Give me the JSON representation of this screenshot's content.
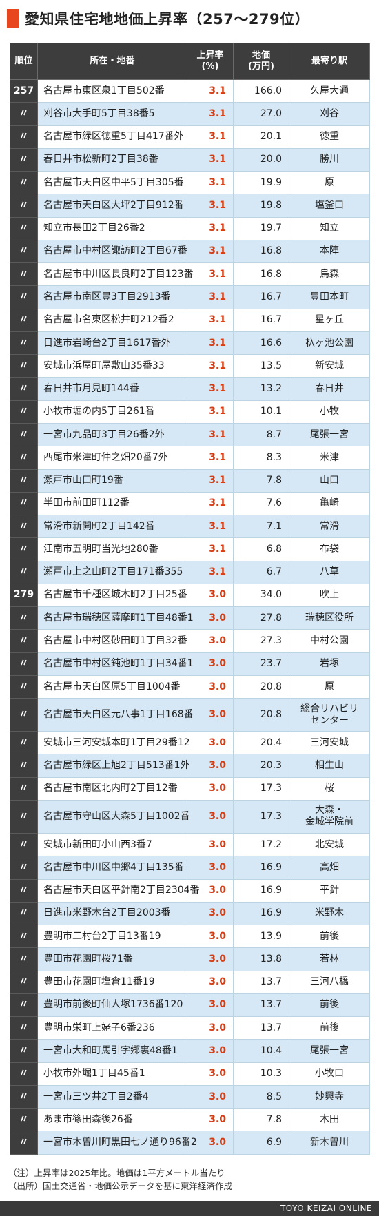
{
  "title": "愛知県住宅地地価上昇率（257〜279位）",
  "headers": {
    "rank": "順位",
    "location": "所在・地番",
    "rate_line1": "上昇率",
    "rate_line2": "(%)",
    "price_line1": "地価",
    "price_line2": "(万円)",
    "station": "最寄り駅"
  },
  "rows": [
    {
      "rank": "257",
      "location": "名古屋市東区泉1丁目502番",
      "rate": "3.1",
      "price": "166.0",
      "station": "久屋大通"
    },
    {
      "rank": "〃",
      "location": "刈谷市大手町5丁目38番5",
      "rate": "3.1",
      "price": "27.0",
      "station": "刈谷"
    },
    {
      "rank": "〃",
      "location": "名古屋市緑区徳重5丁目417番外",
      "rate": "3.1",
      "price": "20.1",
      "station": "徳重"
    },
    {
      "rank": "〃",
      "location": "春日井市松新町2丁目38番",
      "rate": "3.1",
      "price": "20.0",
      "station": "勝川"
    },
    {
      "rank": "〃",
      "location": "名古屋市天白区中平5丁目305番",
      "rate": "3.1",
      "price": "19.9",
      "station": "原"
    },
    {
      "rank": "〃",
      "location": "名古屋市天白区大坪2丁目912番",
      "rate": "3.1",
      "price": "19.8",
      "station": "塩釜口"
    },
    {
      "rank": "〃",
      "location": "知立市長田2丁目26番2",
      "rate": "3.1",
      "price": "19.7",
      "station": "知立"
    },
    {
      "rank": "〃",
      "location": "名古屋市中村区諏訪町2丁目67番",
      "rate": "3.1",
      "price": "16.8",
      "station": "本陣"
    },
    {
      "rank": "〃",
      "location": "名古屋市中川区長良町2丁目123番",
      "rate": "3.1",
      "price": "16.8",
      "station": "烏森"
    },
    {
      "rank": "〃",
      "location": "名古屋市南区豊3丁目2913番",
      "rate": "3.1",
      "price": "16.7",
      "station": "豊田本町"
    },
    {
      "rank": "〃",
      "location": "名古屋市名東区松井町212番2",
      "rate": "3.1",
      "price": "16.7",
      "station": "星ヶ丘"
    },
    {
      "rank": "〃",
      "location": "日進市岩崎台2丁目1617番外",
      "rate": "3.1",
      "price": "16.6",
      "station": "杁ヶ池公園"
    },
    {
      "rank": "〃",
      "location": "安城市浜屋町屋敷山35番33",
      "rate": "3.1",
      "price": "13.5",
      "station": "新安城"
    },
    {
      "rank": "〃",
      "location": "春日井市月見町144番",
      "rate": "3.1",
      "price": "13.2",
      "station": "春日井"
    },
    {
      "rank": "〃",
      "location": "小牧市堀の内5丁目261番",
      "rate": "3.1",
      "price": "10.1",
      "station": "小牧"
    },
    {
      "rank": "〃",
      "location": "一宮市九品町3丁目26番2外",
      "rate": "3.1",
      "price": "8.7",
      "station": "尾張一宮"
    },
    {
      "rank": "〃",
      "location": "西尾市米津町仲之畑20番7外",
      "rate": "3.1",
      "price": "8.3",
      "station": "米津"
    },
    {
      "rank": "〃",
      "location": "瀬戸市山口町19番",
      "rate": "3.1",
      "price": "7.8",
      "station": "山口"
    },
    {
      "rank": "〃",
      "location": "半田市前田町112番",
      "rate": "3.1",
      "price": "7.6",
      "station": "亀崎"
    },
    {
      "rank": "〃",
      "location": "常滑市新開町2丁目142番",
      "rate": "3.1",
      "price": "7.1",
      "station": "常滑"
    },
    {
      "rank": "〃",
      "location": "江南市五明町当光地280番",
      "rate": "3.1",
      "price": "6.8",
      "station": "布袋"
    },
    {
      "rank": "〃",
      "location": "瀬戸市上之山町2丁目171番355",
      "rate": "3.1",
      "price": "6.7",
      "station": "八草"
    },
    {
      "rank": "279",
      "location": "名古屋市千種区城木町2丁目25番",
      "rate": "3.0",
      "price": "34.0",
      "station": "吹上"
    },
    {
      "rank": "〃",
      "location": "名古屋市瑞穂区薩摩町1丁目48番1",
      "rate": "3.0",
      "price": "27.8",
      "station": "瑞穂区役所"
    },
    {
      "rank": "〃",
      "location": "名古屋市中村区砂田町1丁目32番",
      "rate": "3.0",
      "price": "27.3",
      "station": "中村公園"
    },
    {
      "rank": "〃",
      "location": "名古屋市中村区鈍池町1丁目34番1",
      "rate": "3.0",
      "price": "23.7",
      "station": "岩塚"
    },
    {
      "rank": "〃",
      "location": "名古屋市天白区原5丁目1004番",
      "rate": "3.0",
      "price": "20.8",
      "station": "原"
    },
    {
      "rank": "〃",
      "location": "名古屋市天白区元八事1丁目168番",
      "rate": "3.0",
      "price": "20.8",
      "station": "総合リハビリ",
      "station2": "センター",
      "tall": true
    },
    {
      "rank": "〃",
      "location": "安城市三河安城本町1丁目29番12",
      "rate": "3.0",
      "price": "20.4",
      "station": "三河安城"
    },
    {
      "rank": "〃",
      "location": "名古屋市緑区上旭2丁目513番1外",
      "rate": "3.0",
      "price": "20.3",
      "station": "相生山"
    },
    {
      "rank": "〃",
      "location": "名古屋市南区北内町2丁目12番",
      "rate": "3.0",
      "price": "17.3",
      "station": "桜"
    },
    {
      "rank": "〃",
      "location": "名古屋市守山区大森5丁目1002番",
      "rate": "3.0",
      "price": "17.3",
      "station": "大森・",
      "station2": "金城学院前",
      "tall": true
    },
    {
      "rank": "〃",
      "location": "安城市新田町小山西3番7",
      "rate": "3.0",
      "price": "17.2",
      "station": "北安城"
    },
    {
      "rank": "〃",
      "location": "名古屋市中川区中郷4丁目135番",
      "rate": "3.0",
      "price": "16.9",
      "station": "高畑"
    },
    {
      "rank": "〃",
      "location": "名古屋市天白区平針南2丁目2304番",
      "rate": "3.0",
      "price": "16.9",
      "station": "平針"
    },
    {
      "rank": "〃",
      "location": "日進市米野木台2丁目2003番",
      "rate": "3.0",
      "price": "16.9",
      "station": "米野木"
    },
    {
      "rank": "〃",
      "location": "豊明市二村台2丁目13番19",
      "rate": "3.0",
      "price": "13.9",
      "station": "前後"
    },
    {
      "rank": "〃",
      "location": "豊田市花園町桜71番",
      "rate": "3.0",
      "price": "13.8",
      "station": "若林"
    },
    {
      "rank": "〃",
      "location": "豊田市花園町塩倉11番19",
      "rate": "3.0",
      "price": "13.7",
      "station": "三河八橋"
    },
    {
      "rank": "〃",
      "location": "豊明市前後町仙人塚1736番120",
      "rate": "3.0",
      "price": "13.7",
      "station": "前後"
    },
    {
      "rank": "〃",
      "location": "豊明市栄町上姥子6番236",
      "rate": "3.0",
      "price": "13.7",
      "station": "前後"
    },
    {
      "rank": "〃",
      "location": "一宮市大和町馬引字郷裏48番1",
      "rate": "3.0",
      "price": "10.4",
      "station": "尾張一宮"
    },
    {
      "rank": "〃",
      "location": "小牧市外堀1丁目45番1",
      "rate": "3.0",
      "price": "10.3",
      "station": "小牧口"
    },
    {
      "rank": "〃",
      "location": "一宮市三ツ井2丁目2番4",
      "rate": "3.0",
      "price": "8.5",
      "station": "妙興寺"
    },
    {
      "rank": "〃",
      "location": "あま市篠田森後26番",
      "rate": "3.0",
      "price": "7.8",
      "station": "木田"
    },
    {
      "rank": "〃",
      "location": "一宮市木曽川町黒田七ノ通り96番2",
      "rate": "3.0",
      "price": "6.9",
      "station": "新木曽川"
    }
  ],
  "notes": {
    "note1": "（注）上昇率は2025年比。地価は1平方メートル当たり",
    "note2": "（出所）国土交通省・地価公示データを基に東洋経済作成"
  },
  "footer": "TOYO KEIZAI ONLINE",
  "colors": {
    "accent": "#e8461e",
    "header_bg": "#3d3d3d",
    "row_alt": "#d6e8f5",
    "rate": "#d43e16"
  }
}
